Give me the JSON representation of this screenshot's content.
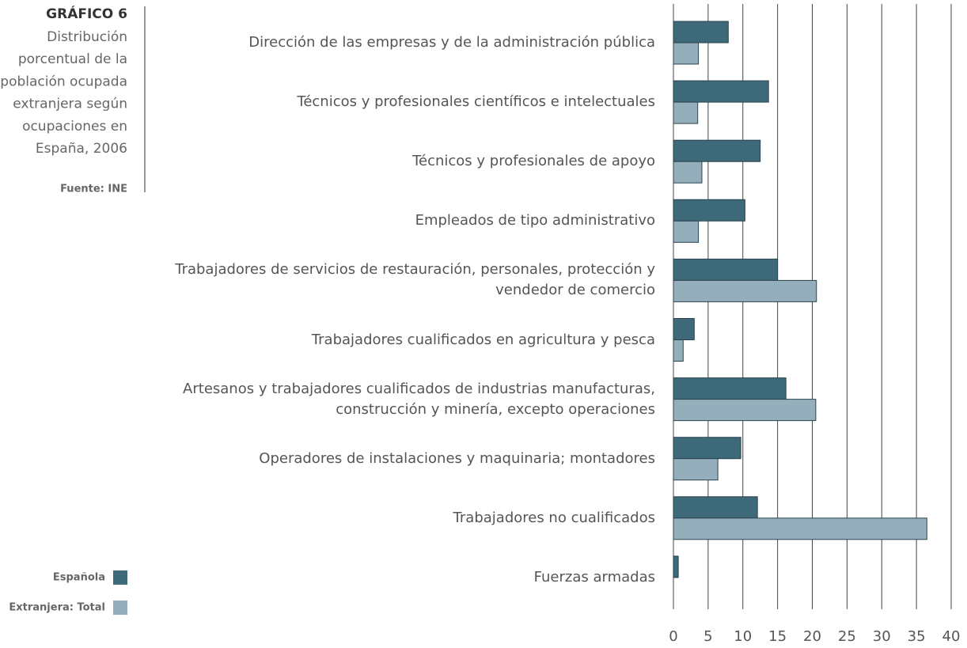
{
  "chart_data": {
    "type": "hbar",
    "title": "GRÁFICO 6",
    "subtitle_lines": [
      "Distribución",
      "porcentual de la",
      "población ocupada",
      "extranjera según",
      "ocupaciones en",
      "España, 2006"
    ],
    "source": "Fuente: INE",
    "categories": [
      "Dirección de las empresas y de la administración pública",
      "Técnicos y profesionales científicos e intelectuales",
      "Técnicos y profesionales de apoyo",
      "Empleados de tipo administrativo",
      "Trabajadores de servicios de restauración, personales, protección y\nvendedor de comercio",
      "Trabajadores cualificados en agricultura y pesca",
      "Artesanos y trabajadores cualificados de industrias manufacturas,\nconstrucción y minería, excepto operaciones",
      "Operadores de instalaciones y maquinaria; montadores",
      "Trabajadores no cualificados",
      "Fuerzas armadas"
    ],
    "series": [
      {
        "name": "Española",
        "color": "#3e6979",
        "values": [
          7.9,
          13.7,
          12.5,
          10.3,
          15.0,
          3.0,
          16.2,
          9.7,
          12.1,
          0.7
        ]
      },
      {
        "name": "Extranjera: Total",
        "color": "#94aebb",
        "values": [
          3.6,
          3.5,
          4.1,
          3.6,
          20.6,
          1.4,
          20.5,
          6.4,
          36.5,
          null
        ]
      }
    ],
    "xlim": [
      0,
      40
    ],
    "xticks": [
      0,
      5,
      10,
      15,
      20,
      25,
      30,
      35,
      40
    ],
    "grid": true
  }
}
